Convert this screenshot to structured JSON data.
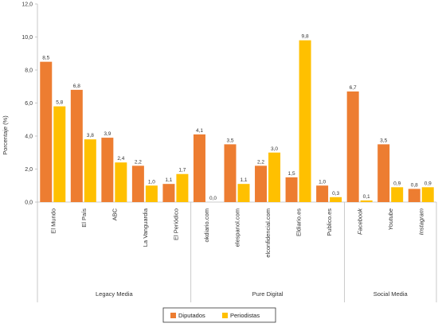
{
  "chart_data": {
    "type": "bar",
    "ylabel": "Porcentaje (%)",
    "ylim": [
      0,
      12
    ],
    "yticks": [
      "0,0",
      "2,0",
      "4,0",
      "6,0",
      "8,0",
      "10,0",
      "12,0"
    ],
    "colors": {
      "Diputados": "#ed7d31",
      "Periodistas": "#ffc000",
      "axis": "#bdbdbd"
    },
    "series": [
      {
        "name": "Diputados",
        "values": [
          8.5,
          6.8,
          3.9,
          2.2,
          1.1,
          4.1,
          3.5,
          2.2,
          1.5,
          1.0,
          6.7,
          3.5,
          0.8
        ]
      },
      {
        "name": "Periodistas",
        "values": [
          5.8,
          3.8,
          2.4,
          1.0,
          1.7,
          0.0,
          1.1,
          3.0,
          9.8,
          0.3,
          0.1,
          0.9,
          0.9
        ]
      }
    ],
    "labels": {
      "Diputados": [
        "8,5",
        "6,8",
        "3,9",
        "2,2",
        "1,1",
        "4,1",
        "3,5",
        "2,2",
        "1,5",
        "1,0",
        "6,7",
        "3,5",
        "0,8"
      ],
      "Periodistas": [
        "5,8",
        "3,8",
        "2,4",
        "1,0",
        "1,7",
        "0,0",
        "1,1",
        "3,0",
        "9,8",
        "0,3",
        "0,1",
        "0,9",
        "0,9"
      ]
    },
    "categories": [
      "El Mundo",
      "El País",
      "ABC",
      "La Vanguardia",
      "El Periódico",
      "okdiario.com",
      "elespanol.com",
      "elconfidencial.com",
      "Eldiario.es",
      "Publico.es",
      "Facebook",
      "Youtube",
      "Instagram"
    ],
    "italic_categories": [
      "Facebook",
      "Youtube",
      "Instagram"
    ],
    "groups": [
      {
        "name": "Legacy Media",
        "count": 5
      },
      {
        "name": "Pure Digital",
        "count": 5
      },
      {
        "name": "Social Media",
        "count": 3
      }
    ],
    "legend": [
      "Diputados",
      "Periodistas"
    ],
    "legend_position": "bottom-center",
    "grid": false
  }
}
